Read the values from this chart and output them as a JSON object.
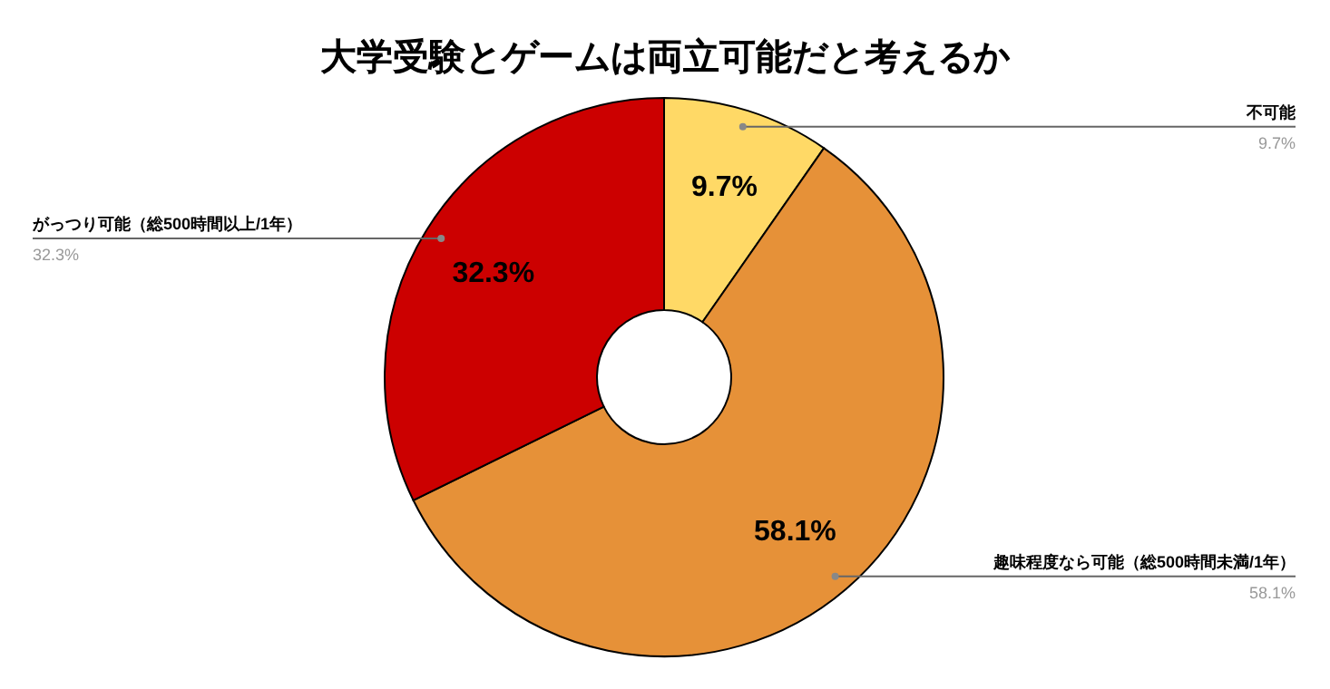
{
  "chart_data": {
    "type": "donut",
    "title": "大学受験とゲームは両立可能だと考えるか",
    "categories": [
      "不可能",
      "趣味程度なら可能（総500時間未満/1年）",
      "がっつり可能（総500時間以上/1年）"
    ],
    "values": [
      9.7,
      58.1,
      32.3
    ],
    "value_labels": [
      "9.7%",
      "58.1%",
      "32.3%"
    ],
    "annotations": [
      "9.7%",
      "58.1%",
      "32.3%"
    ],
    "colors": [
      "#ffd966",
      "#e69138",
      "#cc0000"
    ]
  }
}
